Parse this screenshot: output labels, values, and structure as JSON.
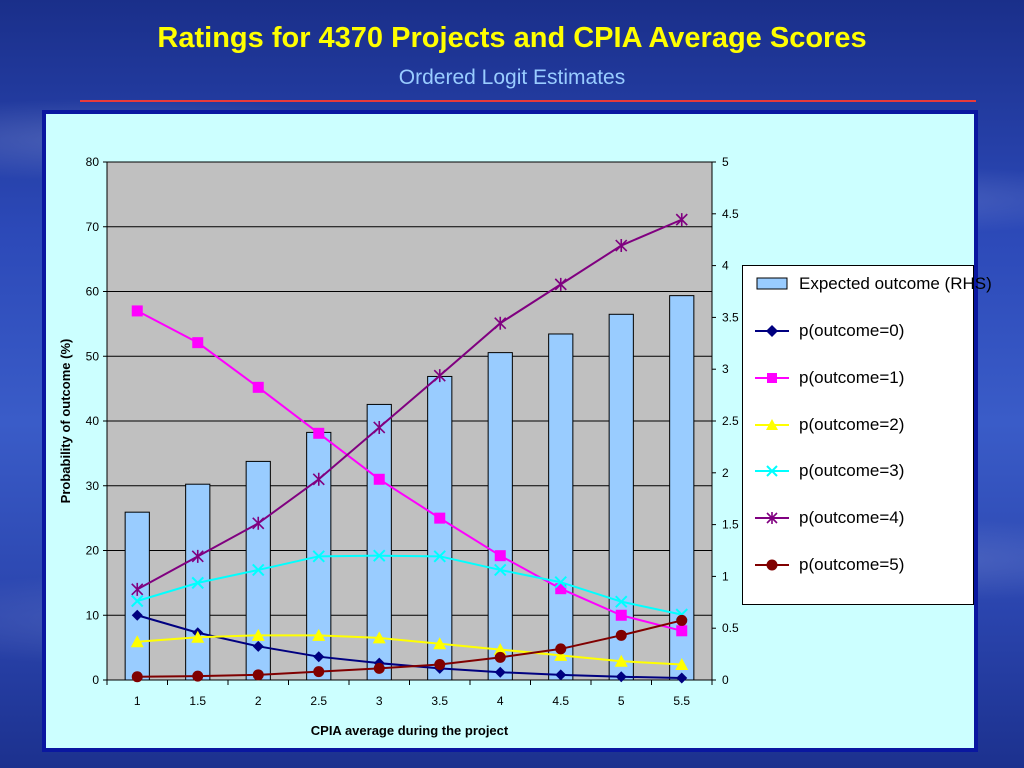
{
  "slide": {
    "title": "Ratings for 4370 Projects and CPIA Average Scores",
    "subtitle": "Ordered Logit Estimates"
  },
  "chart_data": {
    "type": "bar+line",
    "title": "",
    "xlabel": "CPIA average during the project",
    "ylabel": "Probability of outcome (%)",
    "categories": [
      "1",
      "1.5",
      "2",
      "2.5",
      "3",
      "3.5",
      "4",
      "4.5",
      "5",
      "5.5"
    ],
    "ylim": [
      0,
      80
    ],
    "yticks": [
      "0",
      "10",
      "20",
      "30",
      "40",
      "50",
      "60",
      "70",
      "80"
    ],
    "y2lim": [
      0,
      5
    ],
    "y2ticks": [
      "0",
      "0.5",
      "1",
      "1.5",
      "2",
      "2.5",
      "3",
      "3.5",
      "4",
      "4.5",
      "5"
    ],
    "grid": true,
    "legend_position": "right",
    "bar_series": {
      "name": "Expected outcome (RHS)",
      "axis": "right",
      "color": "#99ccff",
      "values": [
        1.62,
        1.89,
        2.11,
        2.39,
        2.66,
        2.93,
        3.16,
        3.34,
        3.53,
        3.71
      ]
    },
    "series": [
      {
        "name": "p(outcome=0)",
        "color": "#000080",
        "marker": "diamond",
        "values": [
          10.0,
          7.3,
          5.2,
          3.6,
          2.6,
          1.8,
          1.2,
          0.8,
          0.5,
          0.3
        ]
      },
      {
        "name": "p(outcome=1)",
        "color": "#ff00ff",
        "marker": "square",
        "values": [
          57.0,
          52.1,
          45.2,
          38.1,
          31.0,
          25.0,
          19.2,
          14.1,
          10.0,
          7.6
        ]
      },
      {
        "name": "p(outcome=2)",
        "color": "#ffff00",
        "marker": "triangle",
        "values": [
          5.9,
          6.6,
          6.9,
          6.9,
          6.5,
          5.6,
          4.7,
          3.8,
          2.9,
          2.4
        ]
      },
      {
        "name": "p(outcome=3)",
        "color": "#00ffff",
        "marker": "x",
        "values": [
          12.2,
          15.0,
          17.0,
          19.1,
          19.2,
          19.1,
          17.0,
          15.1,
          12.1,
          10.1
        ]
      },
      {
        "name": "p(outcome=4)",
        "color": "#800080",
        "marker": "star",
        "values": [
          14.0,
          19.1,
          24.2,
          31.0,
          39.0,
          47.0,
          55.1,
          61.1,
          67.1,
          71.1
        ]
      },
      {
        "name": "p(outcome=5)",
        "color": "#800000",
        "marker": "circle",
        "values": [
          0.5,
          0.6,
          0.8,
          1.3,
          1.8,
          2.4,
          3.5,
          4.8,
          6.9,
          9.2
        ]
      }
    ]
  },
  "legend": {
    "items": [
      {
        "label": "Expected outcome (RHS)",
        "symbol": "bar",
        "color": "#99ccff"
      },
      {
        "label": "p(outcome=0)",
        "symbol": "diamond",
        "color": "#000080"
      },
      {
        "label": "p(outcome=1)",
        "symbol": "square",
        "color": "#ff00ff"
      },
      {
        "label": "p(outcome=2)",
        "symbol": "triangle",
        "color": "#ffff00"
      },
      {
        "label": "p(outcome=3)",
        "symbol": "x",
        "color": "#00ffff"
      },
      {
        "label": "p(outcome=4)",
        "symbol": "star",
        "color": "#800080"
      },
      {
        "label": "p(outcome=5)",
        "symbol": "circle",
        "color": "#800000"
      }
    ]
  }
}
